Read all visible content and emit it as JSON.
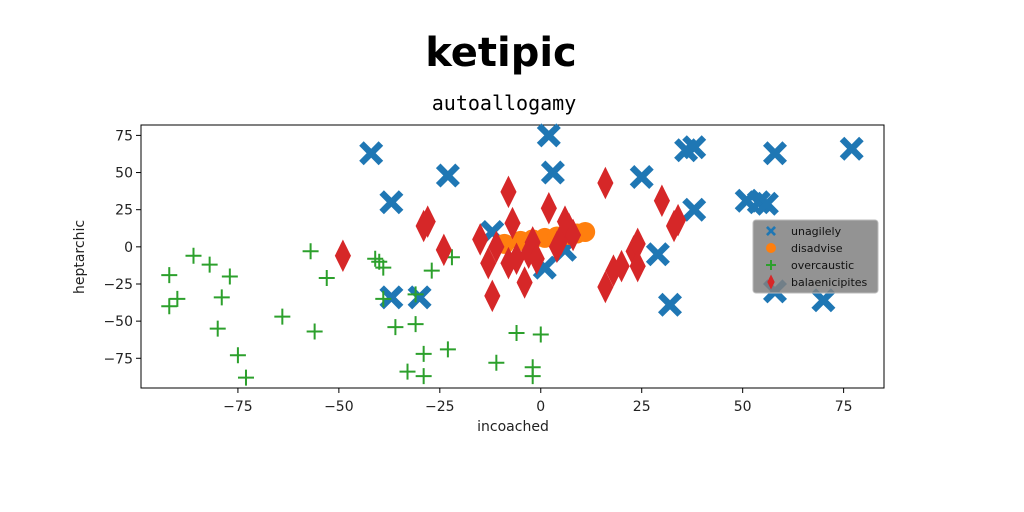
{
  "chart_data": {
    "type": "scatter",
    "title": "ketipic",
    "subtitle": "autoallogamy",
    "xlabel": "incoached",
    "ylabel": "heptarchic",
    "xlim": [
      -99,
      85
    ],
    "ylim": [
      -95,
      82
    ],
    "xticks": [
      -75,
      -50,
      -25,
      0,
      25,
      50,
      75
    ],
    "yticks": [
      -75,
      -50,
      -25,
      0,
      25,
      50,
      75
    ],
    "grid": false,
    "legend_position": "right",
    "series": [
      {
        "name": "unagilely",
        "marker": "X",
        "color": "#1f77b4",
        "points": [
          [
            -42,
            63
          ],
          [
            -37,
            30
          ],
          [
            -23,
            48
          ],
          [
            -37,
            -34
          ],
          [
            -30,
            -34
          ],
          [
            2,
            75
          ],
          [
            3,
            50
          ],
          [
            -12,
            10
          ],
          [
            1,
            -14
          ],
          [
            6,
            -2
          ],
          [
            25,
            47
          ],
          [
            29,
            -5
          ],
          [
            32,
            -39
          ],
          [
            36,
            65
          ],
          [
            38,
            67
          ],
          [
            38,
            25
          ],
          [
            51,
            31
          ],
          [
            54,
            30
          ],
          [
            56,
            29
          ],
          [
            58,
            63
          ],
          [
            58,
            -30
          ],
          [
            70,
            -36
          ],
          [
            77,
            66
          ]
        ]
      },
      {
        "name": "disadvise",
        "marker": "o",
        "color": "#ff7f0e",
        "points": [
          [
            -9,
            2
          ],
          [
            -5,
            4
          ],
          [
            -2,
            5
          ],
          [
            1,
            6
          ],
          [
            4,
            7
          ],
          [
            7,
            8
          ],
          [
            9,
            9
          ],
          [
            11,
            10
          ]
        ]
      },
      {
        "name": "overcaustic",
        "marker": "+",
        "color": "#2ca02c",
        "points": [
          [
            -92,
            -19
          ],
          [
            -92,
            -40
          ],
          [
            -90,
            -35
          ],
          [
            -86,
            -6
          ],
          [
            -82,
            -12
          ],
          [
            -79,
            -34
          ],
          [
            -80,
            -55
          ],
          [
            -77,
            -20
          ],
          [
            -75,
            -73
          ],
          [
            -73,
            -88
          ],
          [
            -64,
            -47
          ],
          [
            -57,
            -3
          ],
          [
            -56,
            -57
          ],
          [
            -53,
            -21
          ],
          [
            -41,
            -8
          ],
          [
            -40,
            -10
          ],
          [
            -39,
            -14
          ],
          [
            -39,
            -35
          ],
          [
            -36,
            -54
          ],
          [
            -33,
            -84
          ],
          [
            -31,
            -32
          ],
          [
            -31,
            -52
          ],
          [
            -29,
            -72
          ],
          [
            -29,
            -87
          ],
          [
            -27,
            -16
          ],
          [
            -23,
            -69
          ],
          [
            -22,
            -7
          ],
          [
            -11,
            -78
          ],
          [
            -6,
            -58
          ],
          [
            -2,
            -81
          ],
          [
            -2,
            -87
          ],
          [
            0,
            -59
          ]
        ]
      },
      {
        "name": "balaenicipites",
        "marker": "d",
        "color": "#d62728",
        "points": [
          [
            -49,
            -6
          ],
          [
            -29,
            14
          ],
          [
            -28,
            17
          ],
          [
            -24,
            -2
          ],
          [
            -15,
            5
          ],
          [
            -13,
            -11
          ],
          [
            -12,
            -33
          ],
          [
            -11,
            0
          ],
          [
            -8,
            -11
          ],
          [
            -8,
            37
          ],
          [
            -7,
            16
          ],
          [
            -6,
            -8
          ],
          [
            -4,
            -24
          ],
          [
            -3,
            -4
          ],
          [
            -2,
            3
          ],
          [
            -1,
            -8
          ],
          [
            2,
            26
          ],
          [
            4,
            0
          ],
          [
            5,
            5
          ],
          [
            6,
            17
          ],
          [
            7,
            12
          ],
          [
            8,
            8
          ],
          [
            16,
            43
          ],
          [
            16,
            -27
          ],
          [
            18,
            -16
          ],
          [
            20,
            -13
          ],
          [
            23,
            -3
          ],
          [
            24,
            2
          ],
          [
            24,
            -13
          ],
          [
            30,
            31
          ],
          [
            33,
            14
          ],
          [
            34,
            18
          ]
        ]
      }
    ]
  }
}
